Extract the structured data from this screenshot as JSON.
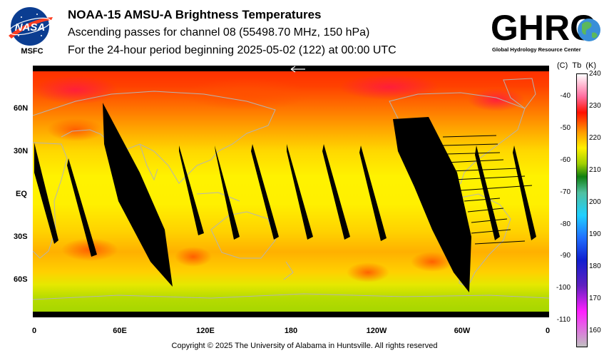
{
  "header": {
    "title": "NOAA-15 AMSU-A Brightness Temperatures",
    "subtitle_1": "Ascending passes for channel 08 (55498.70 MHz, 150 hPa)",
    "subtitle_2": "For the 24-hour period beginning 2025-05-02 (122) at 00:00 UTC"
  },
  "logos": {
    "nasa_text": "NASA",
    "msfc_text": "MSFC",
    "ghrc_text": "GHRC",
    "ghrc_subtext": "Global Hydrology Resource Center"
  },
  "map": {
    "lat_labels": [
      {
        "text": "60N",
        "lat": 60
      },
      {
        "text": "30N",
        "lat": 30
      },
      {
        "text": "EQ",
        "lat": 0
      },
      {
        "text": "30S",
        "lat": -30
      },
      {
        "text": "60S",
        "lat": -60
      }
    ],
    "lon_labels": [
      {
        "text": "0",
        "lon": 0
      },
      {
        "text": "60E",
        "lon": 60
      },
      {
        "text": "120E",
        "lon": 120
      },
      {
        "text": "180",
        "lon": 180
      },
      {
        "text": "120W",
        "lon": 240
      },
      {
        "text": "60W",
        "lon": 300
      },
      {
        "text": "0",
        "lon": 360
      }
    ],
    "colors": {
      "land_outline": "#b4b4b4",
      "no_data": "#000000",
      "polar_band": "#000000"
    }
  },
  "colorbar": {
    "header_c": "(C)",
    "header_tb": "Tb",
    "header_k": "(K)",
    "celsius_ticks": [
      "-40",
      "-50",
      "-60",
      "-70",
      "-80",
      "-90",
      "-100",
      "-110"
    ],
    "kelvin_ticks": [
      "240",
      "230",
      "220",
      "210",
      "200",
      "190",
      "180",
      "170",
      "160"
    ],
    "kelvin_range": [
      155,
      240
    ],
    "stops": [
      {
        "k": 240,
        "color": "#ffffff"
      },
      {
        "k": 233,
        "color": "#ff6ea0"
      },
      {
        "k": 228,
        "color": "#ff1000"
      },
      {
        "k": 222,
        "color": "#ff9a00"
      },
      {
        "k": 217,
        "color": "#fff000"
      },
      {
        "k": 212,
        "color": "#a0d000"
      },
      {
        "k": 208,
        "color": "#108010"
      },
      {
        "k": 203,
        "color": "#50c0a0"
      },
      {
        "k": 196,
        "color": "#20d0ff"
      },
      {
        "k": 189,
        "color": "#2070ff"
      },
      {
        "k": 182,
        "color": "#1020d0"
      },
      {
        "k": 174,
        "color": "#6020c0"
      },
      {
        "k": 166,
        "color": "#ff20ff"
      },
      {
        "k": 155,
        "color": "#c0c0c0"
      }
    ]
  },
  "footer": {
    "copyright": "Copyright © 2025 The University of Alabama in Huntsville.  All rights reserved"
  }
}
